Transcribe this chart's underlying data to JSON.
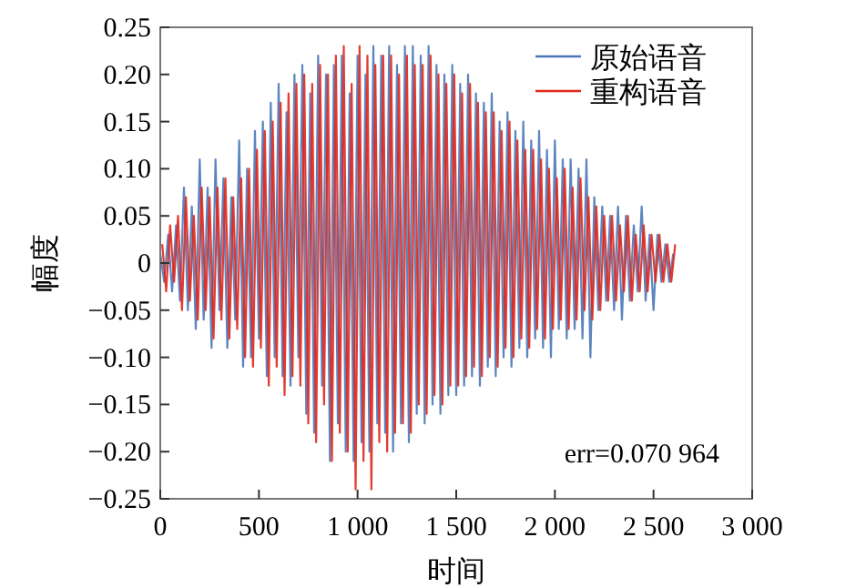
{
  "chart_data": {
    "type": "line",
    "xlabel": "时间",
    "ylabel": "幅度",
    "xlim": [
      0,
      3000
    ],
    "ylim": [
      -0.25,
      0.25
    ],
    "xticks": [
      0,
      500,
      {
        "value": 1000,
        "label": "1 000"
      },
      {
        "value": 1500,
        "label": "1 500"
      },
      {
        "value": 2000,
        "label": "2 000"
      },
      {
        "value": 2500,
        "label": "2 500"
      },
      {
        "value": 3000,
        "label": "3 000"
      }
    ],
    "yticks": [
      {
        "value": -0.25,
        "label": "−0.25"
      },
      {
        "value": -0.2,
        "label": "−0.20"
      },
      {
        "value": -0.15,
        "label": "−0.15"
      },
      {
        "value": -0.1,
        "label": "−0.10"
      },
      {
        "value": -0.05,
        "label": "−0.05"
      },
      0,
      {
        "value": 0.05,
        "label": "0.05"
      },
      {
        "value": 0.1,
        "label": "0.10"
      },
      {
        "value": 0.15,
        "label": "0.15"
      },
      {
        "value": 0.2,
        "label": "0.20"
      },
      {
        "value": 0.25,
        "label": "0.25"
      }
    ],
    "grid": false,
    "legend": "top right",
    "marker": "none",
    "line_style": "solid",
    "annotations": [
      "err=0.070 964"
    ],
    "series": [
      {
        "name": "原始语音",
        "color": "#4a78b8",
        "x": [
          0,
          20,
          40,
          60,
          80,
          100,
          120,
          140,
          160,
          180,
          200,
          220,
          240,
          260,
          280,
          300,
          320,
          340,
          360,
          380,
          400,
          420,
          440,
          460,
          480,
          500,
          520,
          540,
          560,
          580,
          600,
          620,
          640,
          660,
          680,
          700,
          720,
          740,
          760,
          780,
          800,
          820,
          840,
          860,
          880,
          900,
          920,
          940,
          960,
          980,
          1000,
          1020,
          1040,
          1060,
          1080,
          1100,
          1120,
          1140,
          1160,
          1180,
          1200,
          1220,
          1240,
          1260,
          1280,
          1300,
          1320,
          1340,
          1360,
          1380,
          1400,
          1420,
          1440,
          1460,
          1480,
          1500,
          1520,
          1540,
          1560,
          1580,
          1600,
          1620,
          1640,
          1660,
          1680,
          1700,
          1720,
          1740,
          1760,
          1780,
          1800,
          1820,
          1840,
          1860,
          1880,
          1900,
          1920,
          1940,
          1960,
          1980,
          2000,
          2020,
          2040,
          2060,
          2080,
          2100,
          2120,
          2140,
          2160,
          2180,
          2200,
          2220,
          2240,
          2260,
          2280,
          2300,
          2320,
          2340,
          2360,
          2380,
          2400,
          2420,
          2440,
          2460,
          2480,
          2500,
          2520,
          2540,
          2560,
          2580,
          2600
        ],
        "values": [
          0.01,
          -0.02,
          0.03,
          -0.03,
          0.04,
          -0.04,
          0.08,
          -0.05,
          0.06,
          -0.07,
          0.11,
          -0.06,
          0.08,
          -0.09,
          0.11,
          -0.05,
          0.09,
          -0.09,
          0.07,
          -0.06,
          0.13,
          -0.11,
          0.1,
          -0.1,
          0.14,
          -0.08,
          0.15,
          -0.12,
          0.17,
          -0.1,
          0.19,
          -0.12,
          0.16,
          -0.13,
          0.2,
          -0.1,
          0.21,
          -0.16,
          0.18,
          -0.18,
          0.22,
          -0.13,
          0.2,
          -0.21,
          0.21,
          -0.17,
          0.22,
          -0.2,
          0.18,
          -0.21,
          0.22,
          -0.19,
          0.2,
          -0.2,
          0.23,
          -0.17,
          0.22,
          -0.18,
          0.23,
          -0.2,
          0.21,
          -0.17,
          0.23,
          -0.19,
          0.23,
          -0.16,
          0.22,
          -0.17,
          0.23,
          -0.15,
          0.21,
          -0.16,
          0.2,
          -0.14,
          0.21,
          -0.14,
          0.19,
          -0.13,
          0.2,
          -0.12,
          0.18,
          -0.13,
          0.17,
          -0.11,
          0.18,
          -0.12,
          0.15,
          -0.1,
          0.16,
          -0.11,
          0.14,
          -0.09,
          0.15,
          -0.1,
          0.13,
          -0.08,
          0.14,
          -0.09,
          0.12,
          -0.1,
          0.13,
          -0.07,
          0.11,
          -0.08,
          0.11,
          -0.07,
          0.1,
          -0.08,
          0.11,
          -0.1,
          0.07,
          -0.05,
          0.06,
          -0.04,
          0.05,
          -0.05,
          0.06,
          -0.06,
          0.05,
          -0.04,
          0.04,
          -0.03,
          0.06,
          -0.04,
          0.03,
          -0.05,
          0.03,
          -0.02,
          0.02,
          -0.02,
          0.01
        ]
      },
      {
        "name": "重构语音",
        "color": "#e0261c",
        "x": [
          10,
          30,
          50,
          70,
          90,
          110,
          130,
          150,
          170,
          190,
          210,
          230,
          250,
          270,
          290,
          310,
          330,
          350,
          370,
          390,
          410,
          430,
          450,
          470,
          490,
          510,
          530,
          550,
          570,
          590,
          610,
          630,
          650,
          670,
          690,
          710,
          730,
          750,
          770,
          790,
          810,
          830,
          850,
          870,
          890,
          910,
          930,
          950,
          970,
          990,
          1010,
          1030,
          1050,
          1070,
          1090,
          1110,
          1130,
          1150,
          1170,
          1190,
          1210,
          1230,
          1250,
          1270,
          1290,
          1310,
          1330,
          1350,
          1370,
          1390,
          1410,
          1430,
          1450,
          1470,
          1490,
          1510,
          1530,
          1550,
          1570,
          1590,
          1610,
          1630,
          1650,
          1670,
          1690,
          1710,
          1730,
          1750,
          1770,
          1790,
          1810,
          1830,
          1850,
          1870,
          1890,
          1910,
          1930,
          1950,
          1970,
          1990,
          2010,
          2030,
          2050,
          2070,
          2090,
          2110,
          2130,
          2150,
          2170,
          2190,
          2210,
          2230,
          2250,
          2270,
          2290,
          2310,
          2330,
          2350,
          2370,
          2390,
          2410,
          2430,
          2450,
          2470,
          2490,
          2510,
          2530,
          2550,
          2570,
          2590,
          2610
        ],
        "values": [
          0.02,
          -0.03,
          0.04,
          -0.02,
          0.05,
          -0.05,
          0.07,
          -0.04,
          0.05,
          -0.06,
          0.08,
          -0.05,
          0.07,
          -0.08,
          0.08,
          -0.06,
          0.09,
          -0.08,
          0.07,
          -0.07,
          0.09,
          -0.1,
          0.1,
          -0.11,
          0.12,
          -0.09,
          0.14,
          -0.13,
          0.15,
          -0.11,
          0.17,
          -0.14,
          0.18,
          -0.12,
          0.19,
          -0.13,
          0.2,
          -0.17,
          0.19,
          -0.19,
          0.21,
          -0.15,
          0.2,
          -0.21,
          0.22,
          -0.18,
          0.23,
          -0.2,
          0.19,
          -0.24,
          0.23,
          -0.21,
          0.22,
          -0.24,
          0.21,
          -0.19,
          0.22,
          -0.2,
          0.22,
          -0.18,
          0.2,
          -0.17,
          0.22,
          -0.18,
          0.21,
          -0.15,
          0.21,
          -0.16,
          0.22,
          -0.14,
          0.2,
          -0.15,
          0.19,
          -0.13,
          0.2,
          -0.13,
          0.18,
          -0.12,
          0.19,
          -0.11,
          0.17,
          -0.12,
          0.16,
          -0.1,
          0.16,
          -0.11,
          0.14,
          -0.09,
          0.15,
          -0.1,
          0.13,
          -0.08,
          0.12,
          -0.09,
          0.12,
          -0.07,
          0.11,
          -0.08,
          0.1,
          -0.07,
          0.09,
          -0.06,
          0.1,
          -0.07,
          0.08,
          -0.06,
          0.09,
          -0.05,
          0.07,
          -0.06,
          0.06,
          -0.05,
          0.05,
          -0.04,
          0.05,
          -0.04,
          0.04,
          -0.03,
          0.05,
          -0.04,
          0.03,
          -0.03,
          0.04,
          -0.03,
          0.03,
          -0.02,
          0.03,
          -0.02,
          0.02,
          -0.02,
          0.02
        ]
      }
    ]
  }
}
